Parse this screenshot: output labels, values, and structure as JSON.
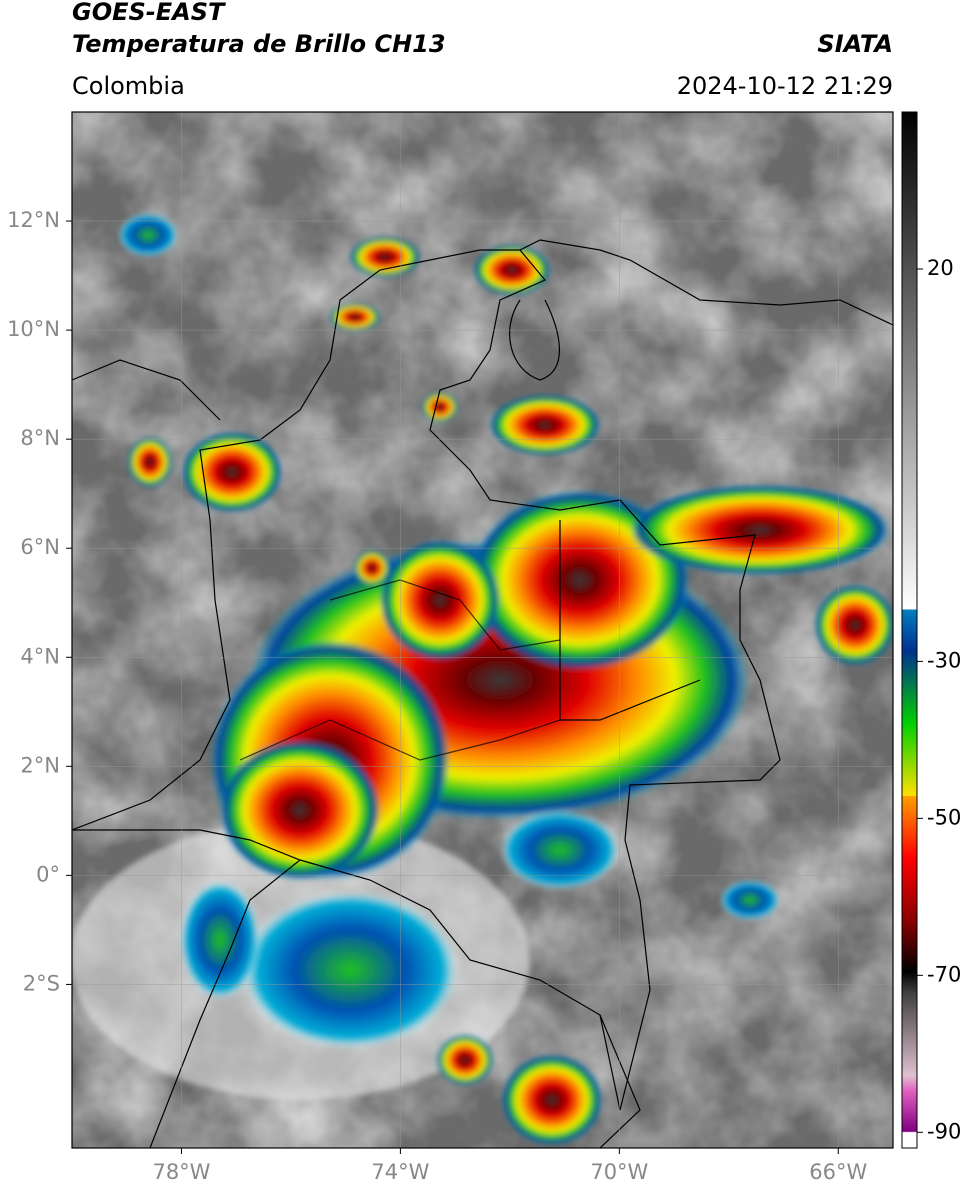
{
  "header": {
    "title": "GOES-EAST",
    "subtitle": "Temperatura de Brillo CH13",
    "source": "SIATA",
    "region": "Colombia",
    "datetime": "2024-10-12 21:29"
  },
  "map": {
    "xlim": [
      -80,
      -65
    ],
    "ylim": [
      -5,
      14
    ],
    "xticks": [
      {
        "value": -78,
        "label": "78°W"
      },
      {
        "value": -74,
        "label": "74°W"
      },
      {
        "value": -70,
        "label": "70°W"
      },
      {
        "value": -66,
        "label": "66°W"
      }
    ],
    "yticks": [
      {
        "value": 12,
        "label": "12°N"
      },
      {
        "value": 10,
        "label": "10°N"
      },
      {
        "value": 8,
        "label": "8°N"
      },
      {
        "value": 6,
        "label": "6°N"
      },
      {
        "value": 4,
        "label": "4°N"
      },
      {
        "value": 2,
        "label": "2°N"
      },
      {
        "value": 0,
        "label": "0°"
      },
      {
        "value": -2,
        "label": "2°S"
      }
    ],
    "grid": true
  },
  "colorbar": {
    "lim": [
      -92,
      40
    ],
    "ticks": [
      20,
      -30,
      -50,
      -70,
      -90
    ]
  }
}
